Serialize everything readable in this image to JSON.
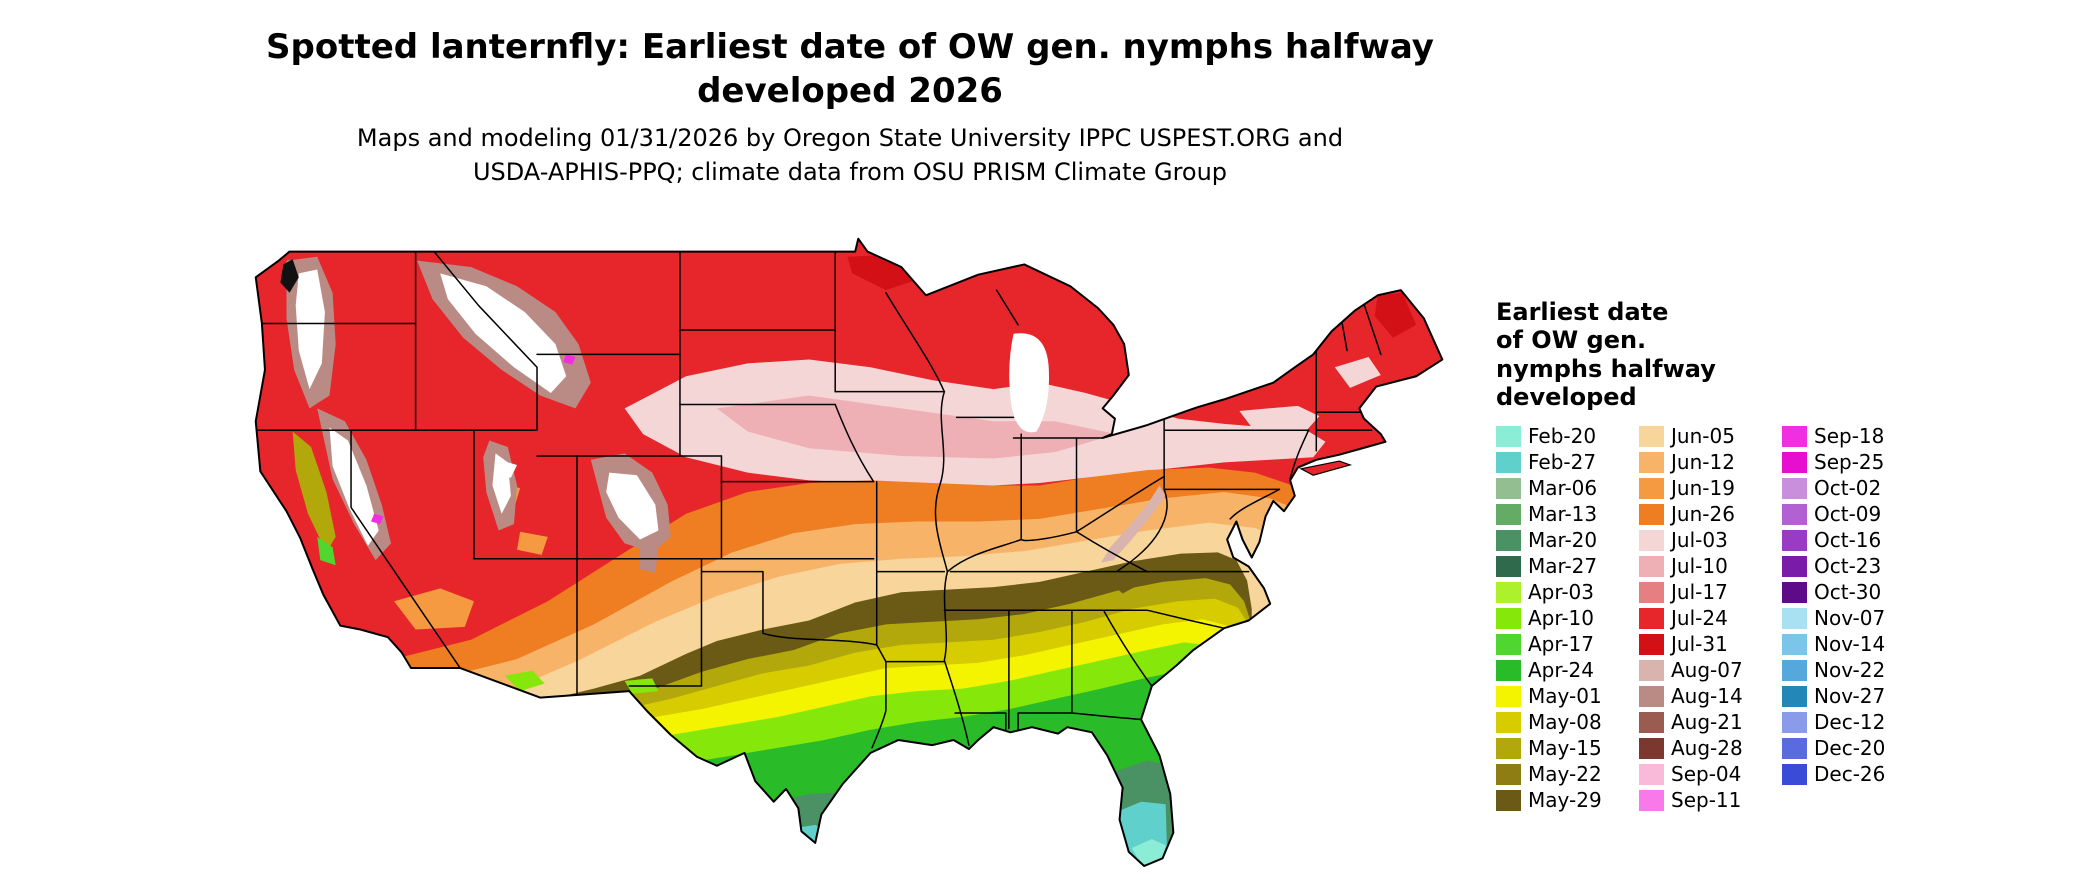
{
  "title_lines": [
    "Spotted lanternfly: Earliest date of OW gen. nymphs halfway",
    "developed 2026"
  ],
  "subtitle_lines": [
    "Maps and modeling 01/31/2026 by Oregon State University IPPC USPEST.ORG and",
    "USDA-APHIS-PPQ; climate data from OSU PRISM Climate Group"
  ],
  "legend": {
    "title_lines": [
      "Earliest date",
      "of OW gen.",
      "nymphs halfway",
      "developed"
    ],
    "columns": [
      [
        {
          "label": "Feb-20",
          "color": "#8BEDD6"
        },
        {
          "label": "Feb-27",
          "color": "#5FD0CB"
        },
        {
          "label": "Mar-06",
          "color": "#92BE92"
        },
        {
          "label": "Mar-13",
          "color": "#64AB66"
        },
        {
          "label": "Mar-20",
          "color": "#4A9164"
        },
        {
          "label": "Mar-27",
          "color": "#2F6A4C"
        },
        {
          "label": "Apr-03",
          "color": "#ADF12D"
        },
        {
          "label": "Apr-10",
          "color": "#86E70B"
        },
        {
          "label": "Apr-17",
          "color": "#4FD730"
        },
        {
          "label": "Apr-24",
          "color": "#2ABB28"
        },
        {
          "label": "May-01",
          "color": "#F5F400"
        },
        {
          "label": "May-08",
          "color": "#D6CC00"
        },
        {
          "label": "May-15",
          "color": "#B2A70B"
        },
        {
          "label": "May-22",
          "color": "#8E7D13"
        },
        {
          "label": "May-29",
          "color": "#6A5A15"
        }
      ],
      [
        {
          "label": "Jun-05",
          "color": "#F7D59B"
        },
        {
          "label": "Jun-12",
          "color": "#F7B469"
        },
        {
          "label": "Jun-19",
          "color": "#F59A41"
        },
        {
          "label": "Jun-26",
          "color": "#EF7D21"
        },
        {
          "label": "Jul-03",
          "color": "#F4D6D7"
        },
        {
          "label": "Jul-10",
          "color": "#EFB0B5"
        },
        {
          "label": "Jul-17",
          "color": "#E67F82"
        },
        {
          "label": "Jul-24",
          "color": "#E6262B"
        },
        {
          "label": "Jul-31",
          "color": "#D21016"
        },
        {
          "label": "Aug-07",
          "color": "#D9B3AE"
        },
        {
          "label": "Aug-14",
          "color": "#BA8B85"
        },
        {
          "label": "Aug-21",
          "color": "#9A5B51"
        },
        {
          "label": "Aug-28",
          "color": "#7C382F"
        },
        {
          "label": "Sep-04",
          "color": "#F9BADA"
        },
        {
          "label": "Sep-11",
          "color": "#F879E9"
        }
      ],
      [
        {
          "label": "Sep-18",
          "color": "#EF2FE1"
        },
        {
          "label": "Sep-25",
          "color": "#E60FD0"
        },
        {
          "label": "Oct-02",
          "color": "#C98FDC"
        },
        {
          "label": "Oct-09",
          "color": "#B161D1"
        },
        {
          "label": "Oct-16",
          "color": "#993BC4"
        },
        {
          "label": "Oct-23",
          "color": "#7B1BAA"
        },
        {
          "label": "Oct-30",
          "color": "#5D0B88"
        },
        {
          "label": "Nov-07",
          "color": "#A9E1F3"
        },
        {
          "label": "Nov-14",
          "color": "#7BC5EA"
        },
        {
          "label": "Nov-22",
          "color": "#55A8DC"
        },
        {
          "label": "Nov-27",
          "color": "#2388B8"
        },
        {
          "label": "Dec-12",
          "color": "#8A9BE9"
        },
        {
          "label": "Dec-20",
          "color": "#5A6BE0"
        },
        {
          "label": "Dec-26",
          "color": "#3A4BD8"
        }
      ]
    ]
  },
  "map": {
    "type": "choropleth",
    "region": "contiguous United States",
    "readings": [
      {
        "area": "northern tier (MT, ND, northern MN, Great Lakes, New England)",
        "category": "Jul-17 to Jul-31"
      },
      {
        "area": "high mountain West (Cascades, Sierra Nevada, Rockies)",
        "category": "white / Aug-07 to Aug-28 fringe"
      },
      {
        "area": "northern plains and upper Midwest belt",
        "category": "Jul-03 to Jul-10"
      },
      {
        "area": "central plains, Corn Belt and mid-Atlantic",
        "category": "Jun-05 to Jun-26"
      },
      {
        "area": "Ozark / southern-Appalachian dark band (OK, AR, TN, NC)",
        "category": "May-22 to May-29"
      },
      {
        "area": "southern plains and Southeast interior",
        "category": "May-01 to May-15"
      },
      {
        "area": "Gulf Coast, central Texas, coastal Georgia and north Florida",
        "category": "Apr-03 to Apr-24"
      },
      {
        "area": "south Texas",
        "category": "Mar-13 to Mar-27"
      },
      {
        "area": "central Florida",
        "category": "Mar-06 to Mar-20"
      },
      {
        "area": "south Florida tip",
        "category": "Feb-20 to Feb-27"
      }
    ]
  }
}
